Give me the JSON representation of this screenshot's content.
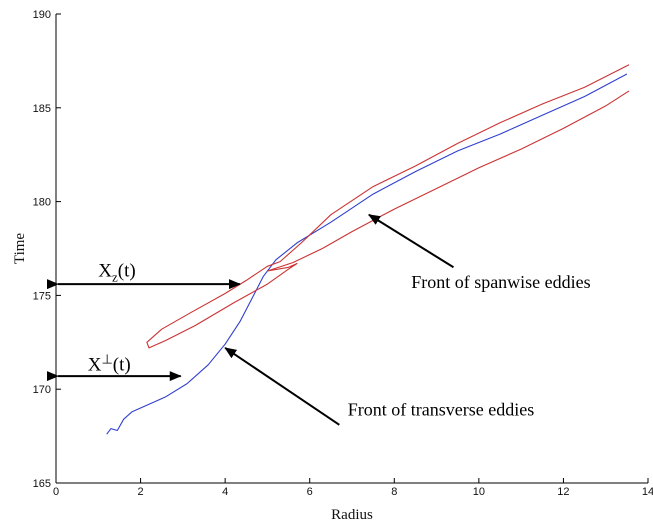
{
  "chart_data": {
    "type": "line",
    "title": "",
    "xlabel": "Radius",
    "ylabel": "Time",
    "xlim": [
      0,
      14
    ],
    "ylim": [
      165,
      190
    ],
    "x_ticks": [
      0,
      2,
      4,
      6,
      8,
      10,
      12,
      14
    ],
    "y_ticks": [
      165,
      170,
      175,
      180,
      185,
      190
    ],
    "grid": false,
    "series": [
      {
        "color": "#2f3fcf",
        "points": [
          [
            1.2,
            167.6
          ],
          [
            1.3,
            167.9
          ],
          [
            1.45,
            167.8
          ],
          [
            1.6,
            168.4
          ],
          [
            1.8,
            168.8
          ],
          [
            2.1,
            169.1
          ],
          [
            2.6,
            169.6
          ],
          [
            3.1,
            170.3
          ],
          [
            3.6,
            171.3
          ],
          [
            4.0,
            172.4
          ],
          [
            4.35,
            173.6
          ],
          [
            4.65,
            174.9
          ],
          [
            4.9,
            176.0
          ],
          [
            5.2,
            176.9
          ],
          [
            5.7,
            177.8
          ],
          [
            6.5,
            178.9
          ],
          [
            7.5,
            180.4
          ],
          [
            8.5,
            181.6
          ],
          [
            9.5,
            182.7
          ],
          [
            10.5,
            183.6
          ],
          [
            11.5,
            184.6
          ],
          [
            12.5,
            185.6
          ],
          [
            13.5,
            186.8
          ]
        ]
      },
      {
        "color": "#cc3333",
        "points": [
          [
            13.55,
            187.3
          ],
          [
            12.5,
            186.1
          ],
          [
            11.5,
            185.2
          ],
          [
            10.5,
            184.2
          ],
          [
            9.5,
            183.1
          ],
          [
            8.5,
            181.9
          ],
          [
            7.5,
            180.8
          ],
          [
            6.5,
            179.3
          ],
          [
            5.8,
            177.8
          ],
          [
            5.3,
            176.8
          ],
          [
            5.0,
            176.55
          ],
          [
            4.5,
            175.8
          ],
          [
            4.0,
            175.1
          ],
          [
            3.2,
            174.1
          ],
          [
            2.5,
            173.2
          ],
          [
            2.15,
            172.5
          ],
          [
            2.2,
            172.2
          ],
          [
            2.6,
            172.6
          ],
          [
            3.3,
            173.4
          ],
          [
            4.2,
            174.6
          ],
          [
            5.0,
            175.6
          ],
          [
            5.5,
            176.4
          ],
          [
            5.7,
            176.7
          ],
          [
            5.5,
            176.5
          ],
          [
            5.0,
            176.3
          ],
          [
            5.6,
            176.75
          ],
          [
            6.3,
            177.5
          ],
          [
            7.0,
            178.4
          ],
          [
            8.0,
            179.6
          ],
          [
            9.0,
            180.7
          ],
          [
            10.0,
            181.8
          ],
          [
            11.0,
            182.8
          ],
          [
            12.0,
            183.9
          ],
          [
            13.0,
            185.1
          ],
          [
            13.55,
            185.9
          ]
        ]
      }
    ],
    "annotations": [
      {
        "id": "spanwise",
        "text": "Front of spanwise eddies",
        "arrow_from": [
          9.4,
          176.5
        ],
        "arrow_to": [
          7.4,
          179.3
        ]
      },
      {
        "id": "transverse",
        "text": "Front of transverse eddies",
        "arrow_from": [
          6.7,
          168.1
        ],
        "arrow_to": [
          4.0,
          172.2
        ]
      }
    ],
    "measures": [
      {
        "id": "xz",
        "symbol": "X",
        "subscript": "z",
        "arg": "(t)",
        "from": [
          0,
          175.6
        ],
        "to": [
          4.35,
          175.6
        ]
      },
      {
        "id": "xperp",
        "symbol": "X",
        "superscript": "⊥",
        "arg": "(t)",
        "from": [
          0,
          170.7
        ],
        "to": [
          2.95,
          170.7
        ]
      }
    ]
  }
}
